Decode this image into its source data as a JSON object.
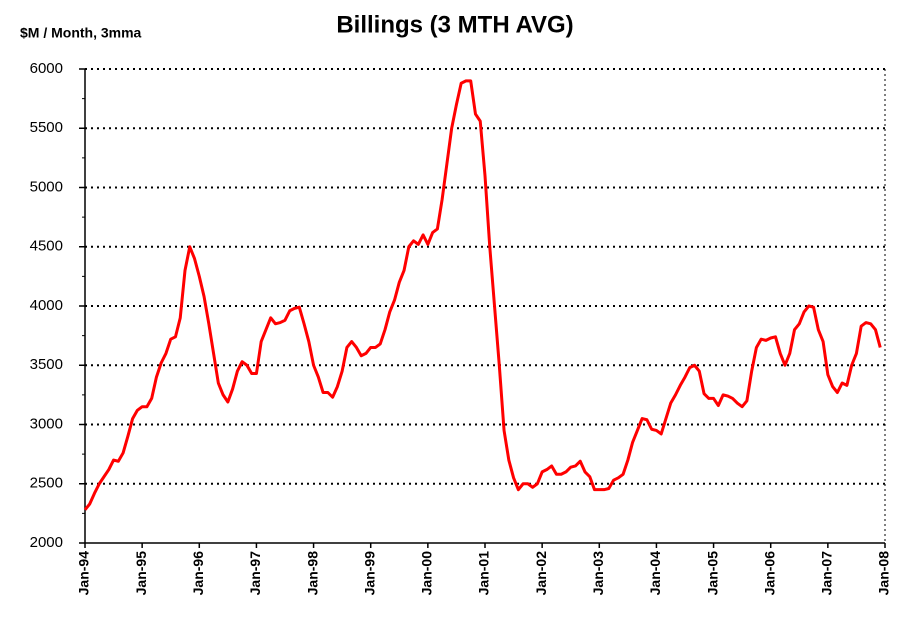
{
  "chart_data": {
    "type": "line",
    "title": "Billings (3 MTH AVG)",
    "y_label": "$M / Month, 3mma",
    "categories": [
      "Jan-94",
      null,
      null,
      null,
      null,
      null,
      null,
      null,
      null,
      null,
      null,
      null,
      "Jan-95",
      null,
      null,
      null,
      null,
      null,
      null,
      null,
      null,
      null,
      null,
      null,
      "Jan-96",
      null,
      null,
      null,
      null,
      null,
      null,
      null,
      null,
      null,
      null,
      null,
      "Jan-97",
      null,
      null,
      null,
      null,
      null,
      null,
      null,
      null,
      null,
      null,
      null,
      "Jan-98",
      null,
      null,
      null,
      null,
      null,
      null,
      null,
      null,
      null,
      null,
      null,
      "Jan-99",
      null,
      null,
      null,
      null,
      null,
      null,
      null,
      null,
      null,
      null,
      null,
      "Jan-00",
      null,
      null,
      null,
      null,
      null,
      null,
      null,
      null,
      null,
      null,
      null,
      "Jan-01",
      null,
      null,
      null,
      null,
      null,
      null,
      null,
      null,
      null,
      null,
      null,
      "Jan-02",
      null,
      null,
      null,
      null,
      null,
      null,
      null,
      null,
      null,
      null,
      null,
      "Jan-03",
      null,
      null,
      null,
      null,
      null,
      null,
      null,
      null,
      null,
      null,
      null,
      "Jan-04",
      null,
      null,
      null,
      null,
      null,
      null,
      null,
      null,
      null,
      null,
      null,
      "Jan-05",
      null,
      null,
      null,
      null,
      null,
      null,
      null,
      null,
      null,
      null,
      null,
      "Jan-06",
      null,
      null,
      null,
      null,
      null,
      null,
      null,
      null,
      null,
      null,
      null,
      "Jan-07",
      null,
      null,
      null,
      null,
      null,
      null,
      null,
      null,
      null,
      null,
      null,
      "Jan-08"
    ],
    "series": [
      {
        "name": "Billings",
        "color": "#ff0000",
        "values": [
          2280,
          2330,
          2420,
          2500,
          2560,
          2620,
          2700,
          2690,
          2760,
          2900,
          3050,
          3120,
          3150,
          3150,
          3220,
          3400,
          3520,
          3600,
          3720,
          3740,
          3900,
          4300,
          4500,
          4400,
          4250,
          4080,
          3850,
          3600,
          3350,
          3250,
          3190,
          3300,
          3450,
          3530,
          3500,
          3430,
          3430,
          3700,
          3800,
          3900,
          3850,
          3860,
          3880,
          3960,
          3980,
          3990,
          3850,
          3700,
          3500,
          3400,
          3270,
          3270,
          3230,
          3320,
          3450,
          3650,
          3700,
          3650,
          3580,
          3600,
          3650,
          3650,
          3680,
          3800,
          3950,
          4050,
          4200,
          4300,
          4500,
          4550,
          4520,
          4600,
          4520,
          4620,
          4650,
          4900,
          5200,
          5500,
          5700,
          5880,
          5900,
          5900,
          5620,
          5560,
          5100,
          4500,
          4000,
          3500,
          2950,
          2700,
          2550,
          2450,
          2500,
          2500,
          2470,
          2500,
          2600,
          2620,
          2650,
          2580,
          2580,
          2600,
          2640,
          2650,
          2690,
          2600,
          2560,
          2450,
          2450,
          2450,
          2460,
          2530,
          2550,
          2580,
          2700,
          2850,
          2950,
          3050,
          3040,
          2960,
          2950,
          2920,
          3050,
          3180,
          3250,
          3330,
          3400,
          3480,
          3500,
          3450,
          3260,
          3220,
          3220,
          3160,
          3250,
          3240,
          3220,
          3180,
          3150,
          3200,
          3450,
          3650,
          3720,
          3710,
          3730,
          3740,
          3600,
          3500,
          3600,
          3800,
          3850,
          3950,
          4000,
          3990,
          3800,
          3700,
          3420,
          3320,
          3270,
          3350,
          3330,
          3500,
          3600,
          3830,
          3860,
          3850,
          3800,
          3650,
          null
        ]
      }
    ],
    "ylim": [
      2000,
      6000
    ],
    "yticks": [
      2000,
      2500,
      3000,
      3500,
      4000,
      4500,
      5000,
      5500,
      6000
    ],
    "grid": true
  }
}
